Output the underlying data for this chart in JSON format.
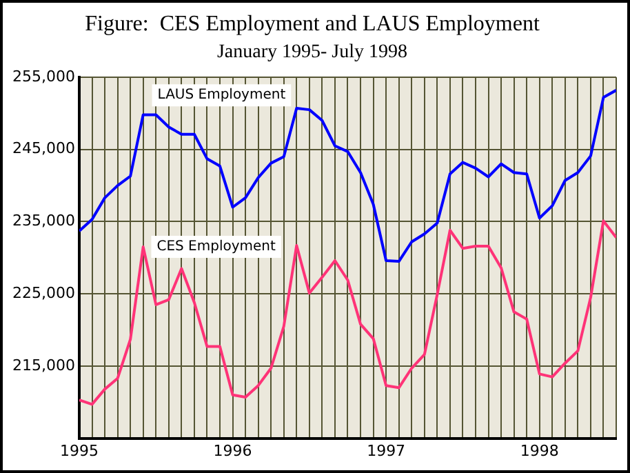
{
  "chart_data": {
    "type": "line",
    "title": "Figure:  CES Employment and LAUS Employment",
    "subtitle": "January 1995- July 1998",
    "x": [
      "1995-01",
      "1995-02",
      "1995-03",
      "1995-04",
      "1995-05",
      "1995-06",
      "1995-07",
      "1995-08",
      "1995-09",
      "1995-10",
      "1995-11",
      "1995-12",
      "1996-01",
      "1996-02",
      "1996-03",
      "1996-04",
      "1996-05",
      "1996-06",
      "1996-07",
      "1996-08",
      "1996-09",
      "1996-10",
      "1996-11",
      "1996-12",
      "1997-01",
      "1997-02",
      "1997-03",
      "1997-04",
      "1997-05",
      "1997-06",
      "1997-07",
      "1997-08",
      "1997-09",
      "1997-10",
      "1997-11",
      "1997-12",
      "1998-01",
      "1998-02",
      "1998-03",
      "1998-04",
      "1998-05",
      "1998-06",
      "1998-07"
    ],
    "series": [
      {
        "name": "LAUS Employment",
        "color": "#0000ff",
        "values": [
          233700,
          235300,
          238300,
          240000,
          241300,
          249800,
          249800,
          248100,
          247100,
          247100,
          243700,
          242700,
          237000,
          238300,
          241100,
          243100,
          244000,
          250700,
          250500,
          249000,
          245500,
          244700,
          241800,
          237400,
          229600,
          229500,
          232200,
          233300,
          234800,
          241600,
          243200,
          242400,
          241200,
          243000,
          241800,
          241600,
          235500,
          237200,
          240700,
          241800,
          244100,
          252200,
          253200
        ]
      },
      {
        "name": "CES Employment",
        "color": "#ff3377",
        "values": [
          210300,
          209700,
          211800,
          213300,
          218700,
          231500,
          223500,
          224200,
          228500,
          223800,
          217700,
          217700,
          211000,
          210700,
          212300,
          214700,
          220500,
          231700,
          225100,
          227300,
          229600,
          226900,
          220800,
          218800,
          212300,
          212000,
          214700,
          216600,
          224900,
          233800,
          231300,
          231600,
          231600,
          228600,
          222500,
          221500,
          213900,
          213500,
          215400,
          217100,
          224500,
          235100,
          232800
        ]
      }
    ],
    "xlim": [
      "1995-01",
      "1998-07"
    ],
    "xticks": [
      {
        "value": "1995-01",
        "label": "1995"
      },
      {
        "value": "1995-02",
        "label": null
      },
      {
        "value": "1995-03",
        "label": null
      },
      {
        "value": "1995-04",
        "label": null
      },
      {
        "value": "1995-05",
        "label": null
      },
      {
        "value": "1995-06",
        "label": null
      },
      {
        "value": "1995-07",
        "label": null
      },
      {
        "value": "1995-08",
        "label": null
      },
      {
        "value": "1995-09",
        "label": null
      },
      {
        "value": "1995-10",
        "label": null
      },
      {
        "value": "1995-11",
        "label": null
      },
      {
        "value": "1995-12",
        "label": null
      },
      {
        "value": "1996-01",
        "label": "1996"
      },
      {
        "value": "1996-02",
        "label": null
      },
      {
        "value": "1996-03",
        "label": null
      },
      {
        "value": "1996-04",
        "label": null
      },
      {
        "value": "1996-05",
        "label": null
      },
      {
        "value": "1996-06",
        "label": null
      },
      {
        "value": "1996-07",
        "label": null
      },
      {
        "value": "1996-08",
        "label": null
      },
      {
        "value": "1996-09",
        "label": null
      },
      {
        "value": "1996-10",
        "label": null
      },
      {
        "value": "1996-11",
        "label": null
      },
      {
        "value": "1996-12",
        "label": null
      },
      {
        "value": "1997-01",
        "label": "1997"
      },
      {
        "value": "1997-02",
        "label": null
      },
      {
        "value": "1997-03",
        "label": null
      },
      {
        "value": "1997-04",
        "label": null
      },
      {
        "value": "1997-05",
        "label": null
      },
      {
        "value": "1997-06",
        "label": null
      },
      {
        "value": "1997-07",
        "label": null
      },
      {
        "value": "1997-08",
        "label": null
      },
      {
        "value": "1997-09",
        "label": null
      },
      {
        "value": "1997-10",
        "label": null
      },
      {
        "value": "1997-11",
        "label": null
      },
      {
        "value": "1997-12",
        "label": null
      },
      {
        "value": "1998-01",
        "label": "1998"
      },
      {
        "value": "1998-02",
        "label": null
      },
      {
        "value": "1998-03",
        "label": null
      },
      {
        "value": "1998-04",
        "label": null
      },
      {
        "value": "1998-05",
        "label": null
      },
      {
        "value": "1998-06",
        "label": null
      },
      {
        "value": "1998-07",
        "label": null
      }
    ],
    "ylim": [
      205000,
      255000
    ],
    "yticks": [
      {
        "value": 215000,
        "label": "215,000"
      },
      {
        "value": 225000,
        "label": "225,000"
      },
      {
        "value": 235000,
        "label": "235,000"
      },
      {
        "value": 245000,
        "label": "245,000"
      },
      {
        "value": 255000,
        "label": "255,000"
      }
    ],
    "grid": true,
    "legend": false,
    "marker": "none",
    "line_style": "solid"
  }
}
